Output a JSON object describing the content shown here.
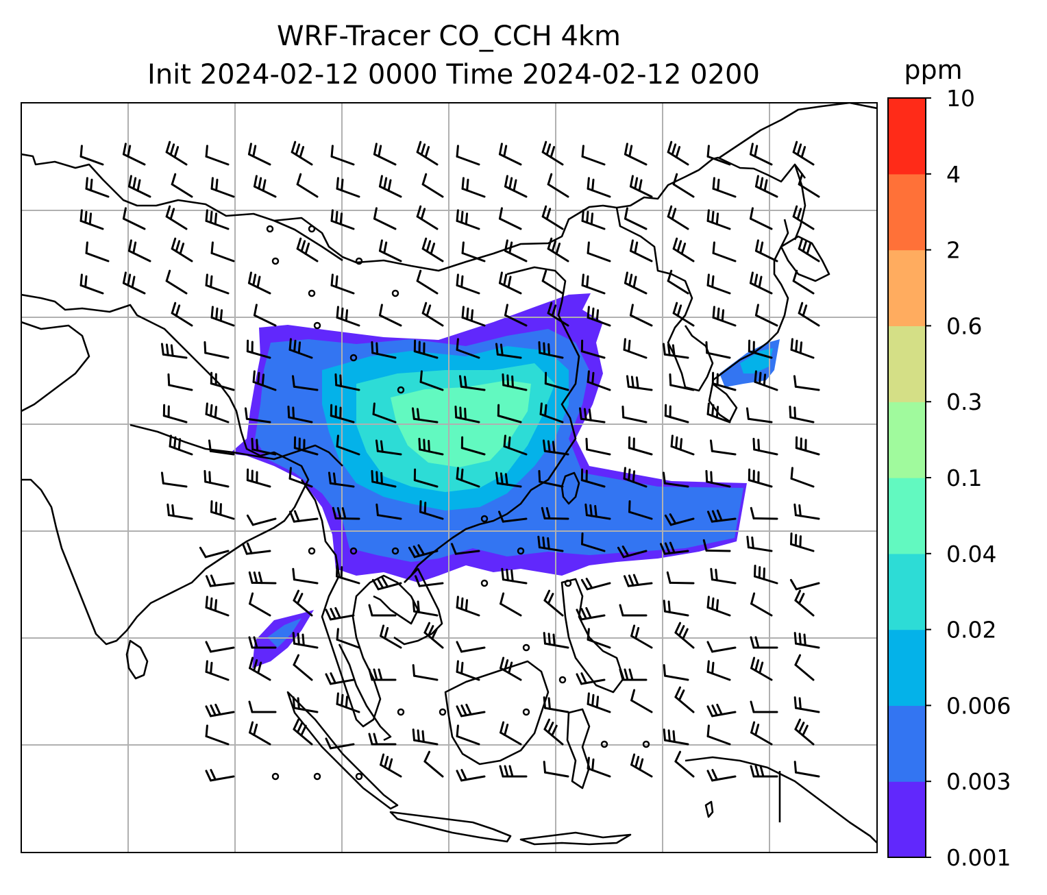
{
  "title": {
    "line1": "WRF-Tracer CO_CCH 4km",
    "line2": "Init 2024-02-12 0000 Time 2024-02-12 0200"
  },
  "colorbar": {
    "unit": "ppm",
    "levels": [
      "0.001",
      "0.003",
      "0.006",
      "0.02",
      "0.04",
      "0.1",
      "0.3",
      "0.6",
      "2",
      "4",
      "10"
    ],
    "colors": [
      "#6128FC",
      "#3375F2",
      "#04B2E9",
      "#2DDCD6",
      "#62F9C0",
      "#A0FA9D",
      "#D4DF86",
      "#FFAC5F",
      "#FF7138",
      "#FF2B18"
    ]
  },
  "map": {
    "gridline_color": "#b0b0b0",
    "coastline_color": "#000000",
    "barb_color": "#000000",
    "wind_barbs": "shown",
    "gridlines": "shown"
  }
}
